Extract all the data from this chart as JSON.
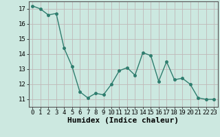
{
  "x": [
    0,
    1,
    2,
    3,
    4,
    5,
    6,
    7,
    8,
    9,
    10,
    11,
    12,
    13,
    14,
    15,
    16,
    17,
    18,
    19,
    20,
    21,
    22,
    23
  ],
  "y": [
    17.2,
    17.0,
    16.6,
    16.7,
    14.4,
    13.2,
    11.5,
    11.1,
    11.4,
    11.3,
    12.0,
    12.9,
    13.1,
    12.6,
    14.1,
    13.9,
    12.2,
    13.5,
    12.3,
    12.4,
    12.0,
    11.1,
    11.0,
    11.0
  ],
  "line_color": "#2e7d6e",
  "marker": "o",
  "marker_size": 2.5,
  "line_width": 1.0,
  "bg_color": "#cce8e0",
  "grid_color": "#c0b8b8",
  "xlabel": "Humidex (Indice chaleur)",
  "ylim": [
    10.5,
    17.5
  ],
  "xlim": [
    -0.5,
    23.5
  ],
  "yticks": [
    11,
    12,
    13,
    14,
    15,
    16,
    17
  ],
  "xticks": [
    0,
    1,
    2,
    3,
    4,
    5,
    6,
    7,
    8,
    9,
    10,
    11,
    12,
    13,
    14,
    15,
    16,
    17,
    18,
    19,
    20,
    21,
    22,
    23
  ],
  "tick_fontsize": 6.5,
  "xlabel_fontsize": 8,
  "font_family": "monospace"
}
